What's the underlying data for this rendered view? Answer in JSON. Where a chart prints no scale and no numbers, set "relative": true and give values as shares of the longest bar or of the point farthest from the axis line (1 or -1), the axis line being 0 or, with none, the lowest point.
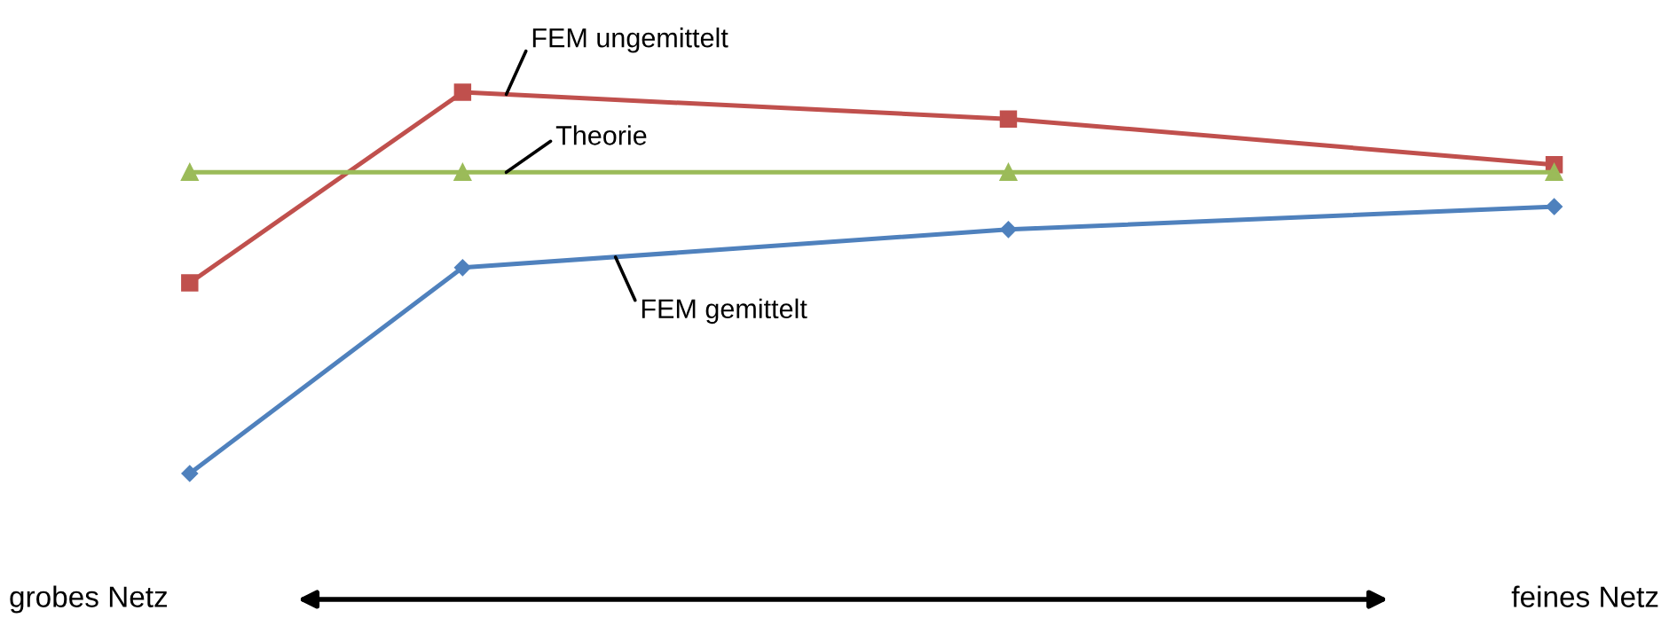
{
  "chart_data": {
    "type": "line",
    "relative": true,
    "categories": [
      null,
      null,
      null,
      null,
      null,
      null
    ],
    "series": [
      {
        "name": "FEM ungemittelt",
        "color": "#c0504d",
        "marker": "square",
        "values": [
          0.5,
          1,
          null,
          0.93,
          null,
          0.81
        ]
      },
      {
        "name": "Theorie",
        "color": "#9bbb59",
        "marker": "triangle",
        "values": [
          0.79,
          0.79,
          null,
          0.79,
          null,
          0.79
        ]
      },
      {
        "name": "FEM gemittelt",
        "color": "#4f81bd",
        "marker": "diamond",
        "values": [
          0,
          0.54,
          null,
          0.64,
          null,
          0.7
        ]
      }
    ],
    "annotations": [
      "grobes Netz",
      "feines Netz"
    ]
  }
}
